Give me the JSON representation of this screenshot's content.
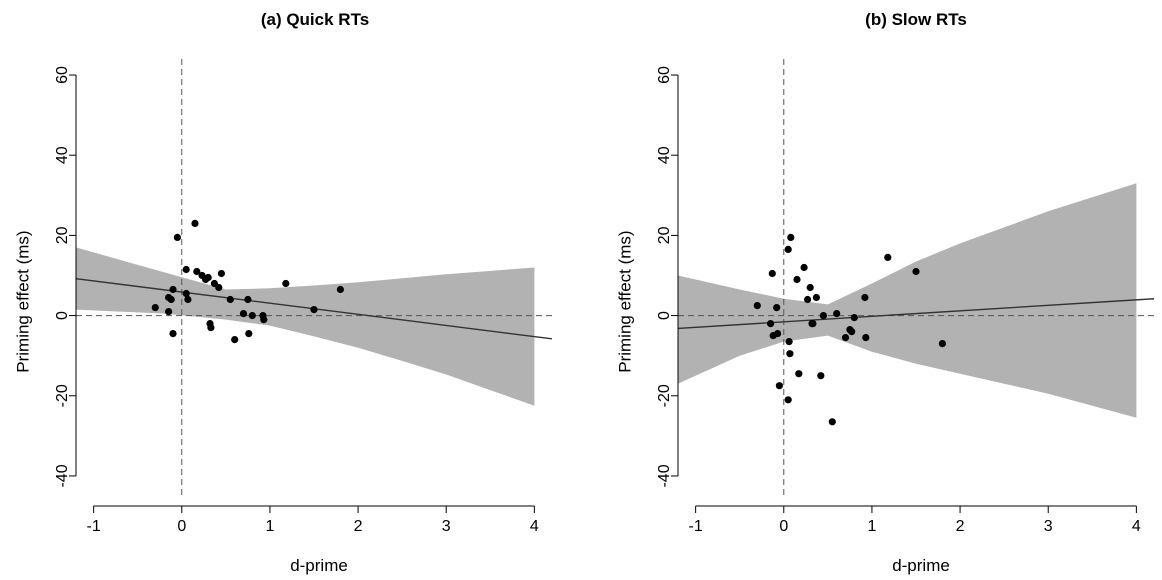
{
  "chart_data": [
    {
      "type": "scatter",
      "title": "(a) Quick RTs",
      "xlabel": "d-prime",
      "ylabel": "Priming effect (ms)",
      "xlim": [
        -1.2,
        4.2
      ],
      "ylim": [
        -45,
        62
      ],
      "xticks": [
        "-1",
        "0",
        "1",
        "2",
        "3",
        "4"
      ],
      "yticks": [
        "-40",
        "-20",
        "0",
        "20",
        "40",
        "60"
      ],
      "reference_lines": {
        "x": 0,
        "y": 0,
        "style": "dashed"
      },
      "fit_line": {
        "x": [
          -1.2,
          4.2
        ],
        "y": [
          9.2,
          -5.8
        ]
      },
      "confidence_band": {
        "x": [
          -1.2,
          -0.2,
          0.5,
          1.0,
          1.5,
          2.0,
          2.5,
          3.0,
          4.0
        ],
        "upper": [
          17.0,
          10.8,
          6.5,
          6.8,
          7.5,
          8.3,
          9.3,
          10.3,
          12.0
        ],
        "lower": [
          1.5,
          0.5,
          -1.0,
          -2.5,
          -5.2,
          -8.0,
          -11.3,
          -14.7,
          -22.5
        ]
      },
      "points": {
        "x": [
          -0.3,
          -0.15,
          -0.15,
          -0.12,
          -0.1,
          -0.1,
          -0.05,
          0.05,
          0.05,
          0.07,
          0.15,
          0.17,
          0.23,
          0.27,
          0.3,
          0.32,
          0.33,
          0.37,
          0.42,
          0.45,
          0.55,
          0.6,
          0.7,
          0.75,
          0.76,
          0.8,
          0.92,
          0.93,
          1.18,
          1.5,
          1.8
        ],
        "y": [
          2.0,
          4.5,
          1.0,
          4.0,
          6.5,
          -4.5,
          19.5,
          11.5,
          5.5,
          4.0,
          23.0,
          11.0,
          10.0,
          9.0,
          9.5,
          -2.0,
          -3.0,
          8.0,
          7.0,
          10.5,
          4.0,
          -6.0,
          0.5,
          4.0,
          -4.5,
          0.0,
          0.0,
          -1.0,
          8.0,
          1.5,
          6.5
        ]
      }
    },
    {
      "type": "scatter",
      "title": "(b) Slow RTs",
      "xlabel": "d-prime",
      "ylabel": "Priming effect (ms)",
      "xlim": [
        -1.2,
        4.2
      ],
      "ylim": [
        -45,
        62
      ],
      "xticks": [
        "-1",
        "0",
        "1",
        "2",
        "3",
        "4"
      ],
      "yticks": [
        "-40",
        "-20",
        "0",
        "20",
        "40",
        "60"
      ],
      "reference_lines": {
        "x": 0,
        "y": 0,
        "style": "dashed"
      },
      "fit_line": {
        "x": [
          -1.2,
          4.2
        ],
        "y": [
          -3.2,
          4.2
        ]
      },
      "confidence_band": {
        "x": [
          -1.2,
          -0.5,
          0.0,
          0.5,
          1.0,
          1.5,
          2.0,
          2.5,
          3.0,
          4.0
        ],
        "upper": [
          10.0,
          6.5,
          4.2,
          2.8,
          8.0,
          13.5,
          18.0,
          22.0,
          26.0,
          33.0
        ],
        "lower": [
          -17.0,
          -10.0,
          -6.5,
          -5.0,
          -9.0,
          -12.0,
          -14.5,
          -17.0,
          -19.5,
          -25.5
        ]
      },
      "points": {
        "x": [
          -0.3,
          -0.15,
          -0.13,
          -0.12,
          -0.08,
          -0.07,
          -0.05,
          0.05,
          0.05,
          0.06,
          0.07,
          0.08,
          0.15,
          0.17,
          0.23,
          0.27,
          0.3,
          0.32,
          0.33,
          0.37,
          0.42,
          0.45,
          0.55,
          0.6,
          0.7,
          0.75,
          0.77,
          0.8,
          0.92,
          0.93,
          1.18,
          1.5,
          1.8
        ],
        "y": [
          2.5,
          -2.0,
          10.5,
          -5.0,
          2.0,
          -4.5,
          -17.5,
          16.5,
          -21.0,
          -6.5,
          -9.5,
          19.5,
          9.0,
          -14.5,
          12.0,
          4.0,
          7.0,
          -2.0,
          -2.0,
          4.5,
          -15.0,
          0.0,
          -26.5,
          0.5,
          -5.5,
          -3.5,
          -4.0,
          -0.5,
          4.5,
          -5.5,
          14.5,
          11.0,
          -7.0
        ]
      }
    }
  ]
}
